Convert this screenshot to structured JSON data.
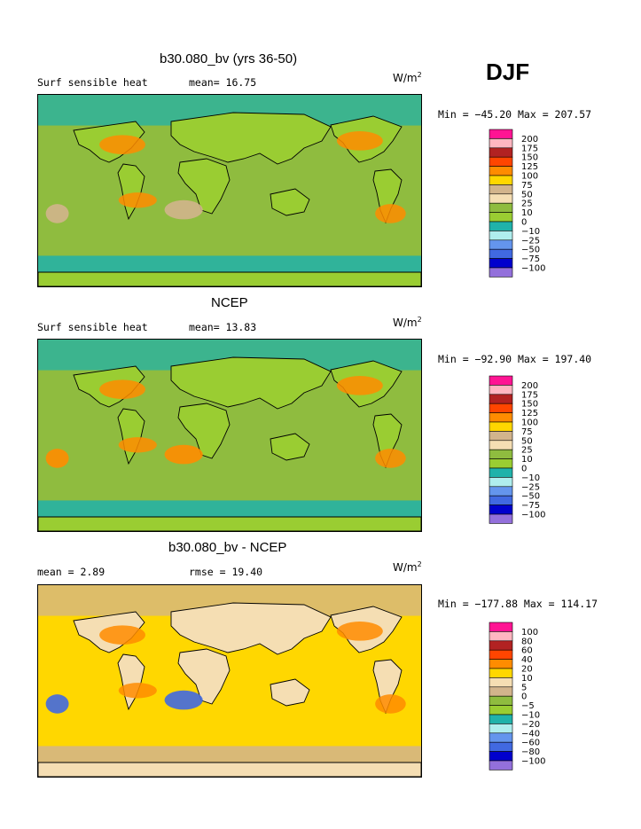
{
  "season": "DJF",
  "panels": [
    {
      "title": "b30.080_bv (yrs 36-50)",
      "left_text": "Surf sensible heat",
      "mid_text": "mean=  16.75",
      "units_base": "W/m",
      "units_exp": "2",
      "minmax": "Min = −45.20 Max = 207.57",
      "levels": [
        "200",
        "175",
        "150",
        "125",
        "100",
        "75",
        "50",
        "25",
        "10",
        "0",
        "−10",
        "−25",
        "−50",
        "−75",
        "−100"
      ],
      "colors": [
        "#ff1493",
        "#ffb6c1",
        "#b22222",
        "#ff4500",
        "#ff8c00",
        "#ffd700",
        "#d2b48c",
        "#f5deb3",
        "#8fbc3f",
        "#9acd32",
        "#20b2aa",
        "#afeeee",
        "#6495ed",
        "#4169e1",
        "#0000cd",
        "#9370db"
      ],
      "field": {
        "ocean": "#8fbc3f",
        "land": "#9acd32",
        "polar": "#20b2aa",
        "storm": "#ff8c00",
        "desert": "#d2b48c"
      }
    },
    {
      "title": "NCEP",
      "left_text": "Surf sensible heat",
      "mid_text": "mean=  13.83",
      "units_base": "W/m",
      "units_exp": "2",
      "minmax": "Min = −92.90 Max = 197.40",
      "levels": [
        "200",
        "175",
        "150",
        "125",
        "100",
        "75",
        "50",
        "25",
        "10",
        "0",
        "−10",
        "−25",
        "−50",
        "−75",
        "−100"
      ],
      "colors": [
        "#ff1493",
        "#ffb6c1",
        "#b22222",
        "#ff4500",
        "#ff8c00",
        "#ffd700",
        "#d2b48c",
        "#f5deb3",
        "#8fbc3f",
        "#9acd32",
        "#20b2aa",
        "#afeeee",
        "#6495ed",
        "#4169e1",
        "#0000cd",
        "#9370db"
      ],
      "field": {
        "ocean": "#8fbc3f",
        "land": "#9acd32",
        "polar": "#20b2aa",
        "storm": "#ff8c00",
        "desert": "#ff8c00"
      }
    },
    {
      "title": "b30.080_bv - NCEP",
      "left_text": "mean =   2.89",
      "mid_text": "rmse =  19.40",
      "units_base": "W/m",
      "units_exp": "2",
      "minmax": "Min = −177.88 Max = 114.17",
      "levels": [
        "100",
        "80",
        "60",
        "40",
        "20",
        "10",
        "5",
        "0",
        "−5",
        "−10",
        "−20",
        "−40",
        "−60",
        "−80",
        "−100"
      ],
      "colors": [
        "#ff1493",
        "#ffb6c1",
        "#b22222",
        "#ff4500",
        "#ff8c00",
        "#ffd700",
        "#f5deb3",
        "#d2b48c",
        "#8fbc3f",
        "#9acd32",
        "#20b2aa",
        "#afeeee",
        "#6495ed",
        "#4169e1",
        "#0000cd",
        "#9370db"
      ],
      "field": {
        "ocean": "#ffd700",
        "land": "#f5deb3",
        "polar": "#d2b48c",
        "storm": "#ff8c00",
        "desert": "#4169e1"
      }
    }
  ]
}
